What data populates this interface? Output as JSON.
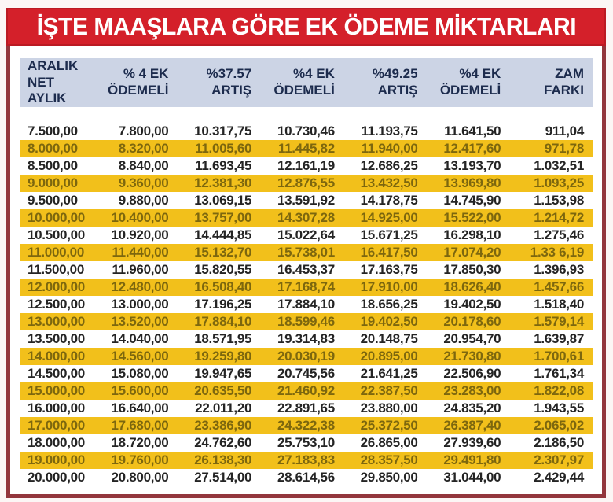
{
  "title": "İŞTE MAAŞLARA GÖRE EK ÖDEME MİKTARLARI",
  "colors": {
    "title_band_red": "#d4202a",
    "frame_border_maroon": "#93363c",
    "header_row_bg": "#ccd4e5",
    "header_row_text": "#1c2b4d",
    "highlight_row_yellow": "#f2c01b",
    "highlight_row_text": "#7d670e",
    "normal_row_text": "#242424",
    "page_background": "#fcf6f5"
  },
  "chart_data": {
    "type": "table",
    "title": "İŞTE MAAŞLARA GÖRE EK ÖDEME MİKTARLARI",
    "columns": [
      [
        "ARALIK",
        "NET AYLIK"
      ],
      [
        "% 4 EK",
        "ÖDEMELİ"
      ],
      [
        "%37.57",
        "ARTIŞ"
      ],
      [
        "%4 EK",
        "ÖDEMELİ"
      ],
      [
        "%49.25",
        "ARTIŞ"
      ],
      [
        "%4 EK",
        "ÖDEMELİ"
      ],
      [
        "ZAM",
        "FARKI"
      ]
    ],
    "rows": [
      [
        "7.500,00",
        "7.800,00",
        "10.317,75",
        "10.730,46",
        "11.193,75",
        "11.641,50",
        "911,04"
      ],
      [
        "8.000,00",
        "8.320,00",
        "11.005,60",
        "11.445,82",
        "11.940,00",
        "12.417,60",
        "971,78"
      ],
      [
        "8.500,00",
        "8.840,00",
        "11.693,45",
        "12.161,19",
        "12.686,25",
        "13.193,70",
        "1.032,51"
      ],
      [
        "9.000,00",
        "9.360,00",
        "12.381,30",
        "12.876,55",
        "13.432,50",
        "13.969,80",
        "1.093,25"
      ],
      [
        "9.500,00",
        "9.880,00",
        "13.069,15",
        "13.591,92",
        "14.178,75",
        "14.745,90",
        "1.153,98"
      ],
      [
        "10.000,00",
        "10.400,00",
        "13.757,00",
        "14.307,28",
        "14.925,00",
        "15.522,00",
        "1.214,72"
      ],
      [
        "10.500,00",
        "10.920,00",
        "14.444,85",
        "15.022,64",
        "15.671,25",
        "16.298,10",
        "1.275,46"
      ],
      [
        "11.000,00",
        "11.440,00",
        "15.132,70",
        "15.738,01",
        "16.417,50",
        "17.074,20",
        "1.33 6,19"
      ],
      [
        "11.500,00",
        "11.960,00",
        "15.820,55",
        "16.453,37",
        "17.163,75",
        "17.850,30",
        "1.396,93"
      ],
      [
        "12.000,00",
        "12.480,00",
        "16.508,40",
        "17.168,74",
        "17.910,00",
        "18.626,40",
        "1.457,66"
      ],
      [
        "12.500,00",
        "13.000,00",
        "17.196,25",
        "17.884,10",
        "18.656,25",
        "19.402,50",
        "1.518,40"
      ],
      [
        "13.000,00",
        "13.520,00",
        "17.884,10",
        "18.599,46",
        "19.402,50",
        "20.178,60",
        "1.579,14"
      ],
      [
        "13.500,00",
        "14.040,00",
        "18.571,95",
        "19.314,83",
        "20.148,75",
        "20.954,70",
        "1.639,87"
      ],
      [
        "14.000,00",
        "14.560,00",
        "19.259,80",
        "20.030,19",
        "20.895,00",
        "21.730,80",
        "1.700,61"
      ],
      [
        "14.500,00",
        "15.080,00",
        "19.947,65",
        "20.745,56",
        "21.641,25",
        "22.506,90",
        "1.761,34"
      ],
      [
        "15.000,00",
        "15.600,00",
        "20.635,50",
        "21.460,92",
        "22.387,50",
        "23.283,00",
        "1.822,08"
      ],
      [
        "16.000,00",
        "16.640,00",
        "22.011,20",
        "22.891,65",
        "23.880,00",
        "24.835,20",
        "1.943,55"
      ],
      [
        "17.000,00",
        "17.680,00",
        "23.386,90",
        "24.322,38",
        "25.372,50",
        "26.387,40",
        "2.065,02"
      ],
      [
        "18.000,00",
        "18.720,00",
        "24.762,60",
        "25.753,10",
        "26.865,00",
        "27.939,60",
        "2.186,50"
      ],
      [
        "19.000,00",
        "19.760,00",
        "26.138,30",
        "27.183,83",
        "28.357,50",
        "29.491,80",
        "2.307,97"
      ],
      [
        "20.000,00",
        "20.800,00",
        "27.514,00",
        "28.614,56",
        "29.850,00",
        "31.044,00",
        "2.429,44"
      ]
    ],
    "highlight_pattern": "every second row (2nd, 4th, 6th, ...) has a yellow background"
  }
}
